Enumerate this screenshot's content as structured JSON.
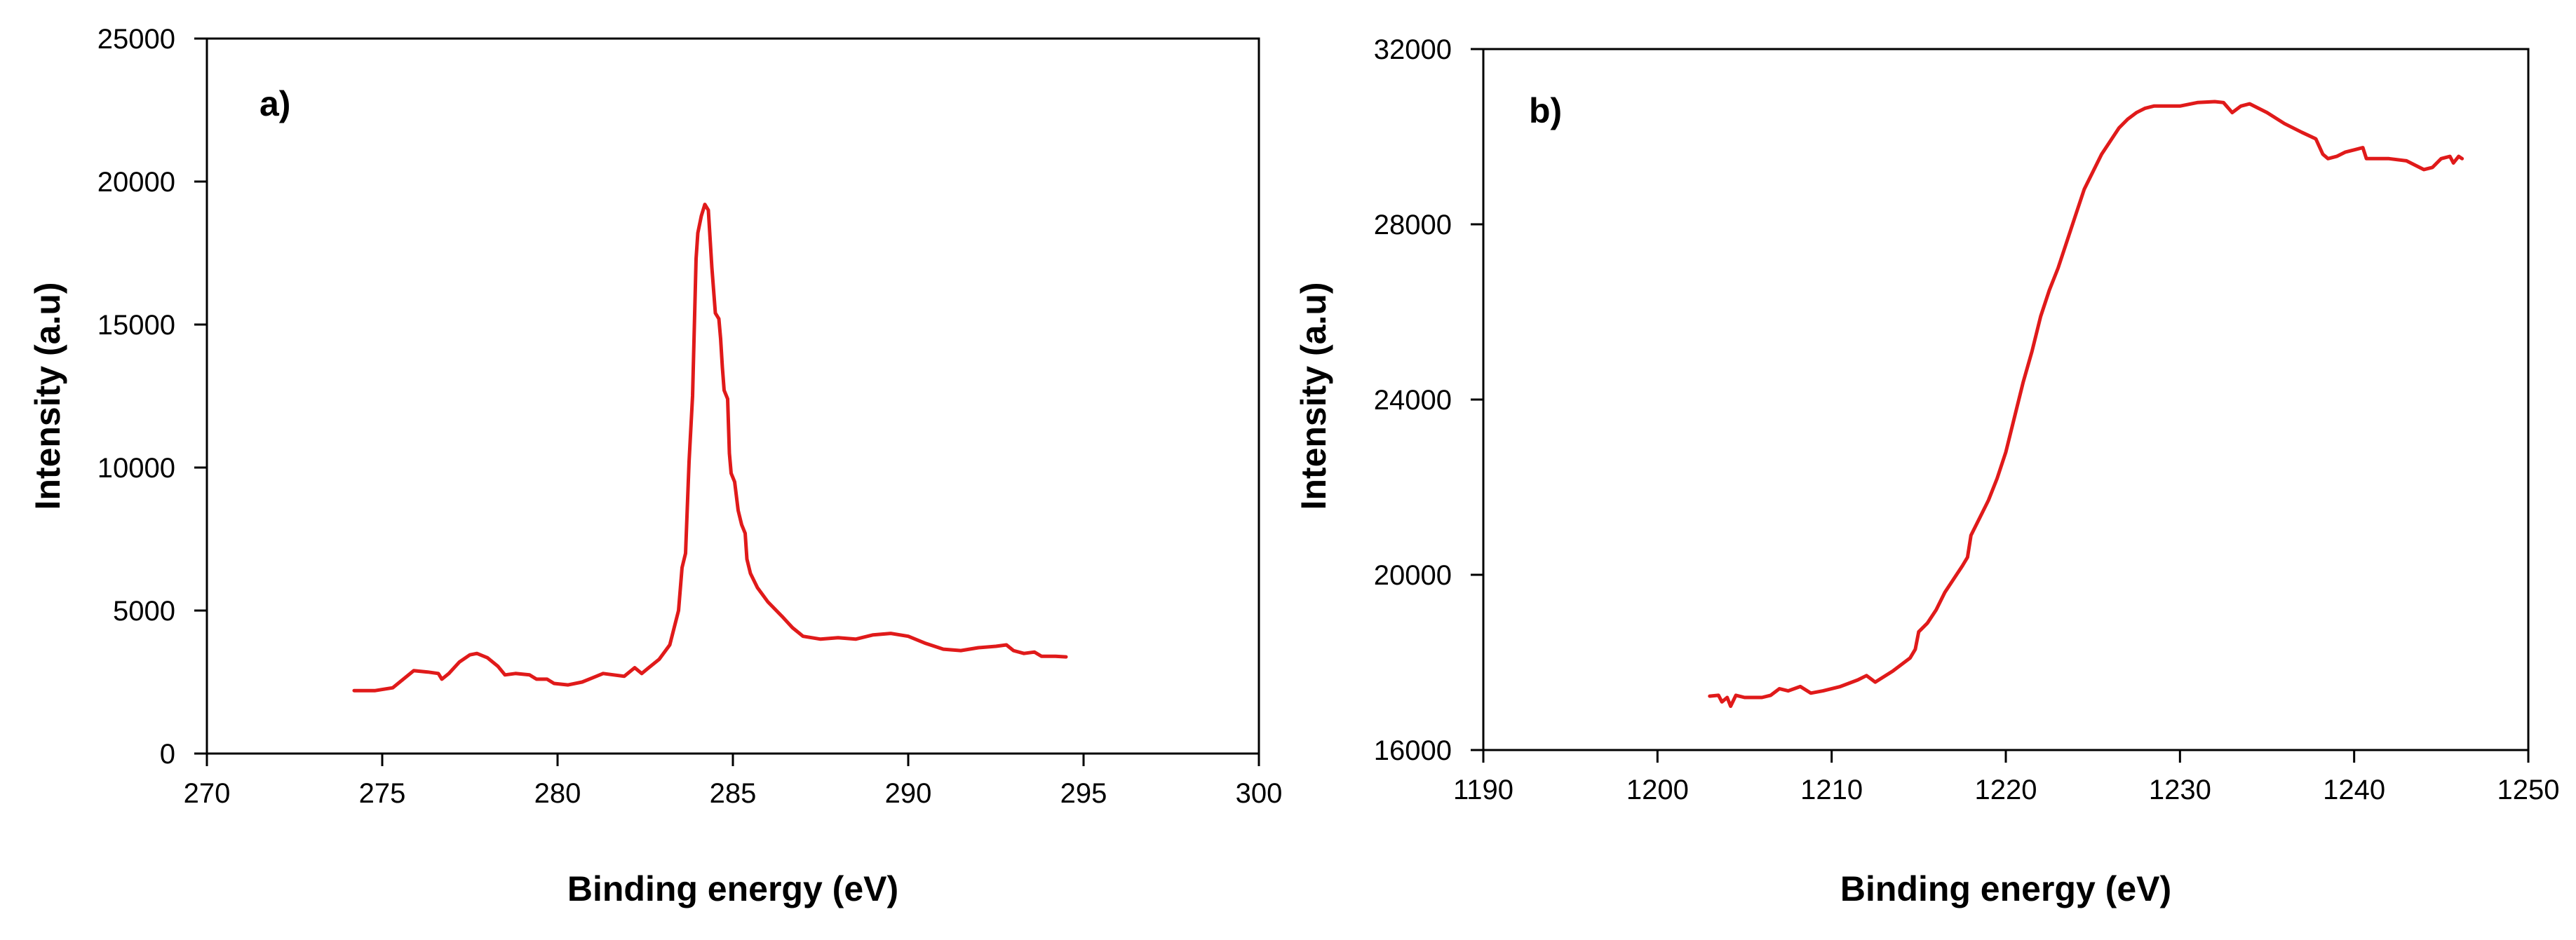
{
  "chart_data": [
    {
      "type": "line",
      "panel_label": "a)",
      "xlabel": "Binding energy (eV)",
      "ylabel": "Intensity (a.u)",
      "xlim": [
        270,
        300
      ],
      "ylim": [
        0,
        25000
      ],
      "x_ticks": [
        270,
        275,
        280,
        285,
        290,
        295,
        300
      ],
      "y_ticks": [
        0,
        5000,
        10000,
        15000,
        20000,
        25000
      ],
      "grid": false,
      "series": [
        {
          "name": "a",
          "color": "#e01a1a",
          "points": [
            [
              274.2,
              2200
            ],
            [
              274.8,
              2200
            ],
            [
              275.3,
              2300
            ],
            [
              275.6,
              2600
            ],
            [
              275.9,
              2900
            ],
            [
              276.3,
              2850
            ],
            [
              276.6,
              2800
            ],
            [
              276.7,
              2600
            ],
            [
              276.9,
              2800
            ],
            [
              277.2,
              3200
            ],
            [
              277.5,
              3450
            ],
            [
              277.7,
              3500
            ],
            [
              278.0,
              3350
            ],
            [
              278.3,
              3050
            ],
            [
              278.5,
              2750
            ],
            [
              278.8,
              2800
            ],
            [
              279.2,
              2750
            ],
            [
              279.4,
              2600
            ],
            [
              279.7,
              2600
            ],
            [
              279.9,
              2450
            ],
            [
              280.3,
              2400
            ],
            [
              280.7,
              2500
            ],
            [
              281.0,
              2650
            ],
            [
              281.3,
              2800
            ],
            [
              281.6,
              2750
            ],
            [
              281.9,
              2700
            ],
            [
              282.2,
              3000
            ],
            [
              282.4,
              2800
            ],
            [
              282.6,
              3000
            ],
            [
              282.9,
              3300
            ],
            [
              283.2,
              3800
            ],
            [
              283.45,
              5000
            ],
            [
              283.55,
              6500
            ],
            [
              283.65,
              7000
            ],
            [
              283.75,
              10200
            ],
            [
              283.85,
              12500
            ],
            [
              283.95,
              17300
            ],
            [
              284.0,
              18200
            ],
            [
              284.1,
              18800
            ],
            [
              284.2,
              19200
            ],
            [
              284.3,
              19000
            ],
            [
              284.4,
              17000
            ],
            [
              284.5,
              15400
            ],
            [
              284.6,
              15200
            ],
            [
              284.65,
              14500
            ],
            [
              284.7,
              13500
            ],
            [
              284.75,
              12700
            ],
            [
              284.85,
              12400
            ],
            [
              284.9,
              10500
            ],
            [
              284.95,
              9800
            ],
            [
              285.05,
              9500
            ],
            [
              285.15,
              8500
            ],
            [
              285.25,
              8000
            ],
            [
              285.35,
              7700
            ],
            [
              285.4,
              6800
            ],
            [
              285.5,
              6300
            ],
            [
              285.7,
              5800
            ],
            [
              286.0,
              5300
            ],
            [
              286.4,
              4800
            ],
            [
              286.7,
              4400
            ],
            [
              287.0,
              4100
            ],
            [
              287.5,
              4000
            ],
            [
              288.0,
              4050
            ],
            [
              288.5,
              4000
            ],
            [
              289.0,
              4150
            ],
            [
              289.5,
              4200
            ],
            [
              290.0,
              4100
            ],
            [
              290.5,
              3850
            ],
            [
              291.0,
              3650
            ],
            [
              291.5,
              3600
            ],
            [
              292.0,
              3700
            ],
            [
              292.5,
              3750
            ],
            [
              292.8,
              3800
            ],
            [
              293.0,
              3600
            ],
            [
              293.3,
              3500
            ],
            [
              293.6,
              3550
            ],
            [
              293.8,
              3400
            ],
            [
              294.2,
              3400
            ],
            [
              294.5,
              3380
            ]
          ]
        }
      ]
    },
    {
      "type": "line",
      "panel_label": "b)",
      "xlabel": "Binding energy (eV)",
      "ylabel": "Intensity (a.u)",
      "xlim": [
        1190,
        1250
      ],
      "ylim": [
        16000,
        32000
      ],
      "x_ticks": [
        1190,
        1200,
        1210,
        1220,
        1230,
        1240,
        1250
      ],
      "y_ticks": [
        16000,
        20000,
        24000,
        28000,
        32000
      ],
      "grid": false,
      "series": [
        {
          "name": "b",
          "color": "#e01a1a",
          "points": [
            [
              1203.0,
              17230
            ],
            [
              1203.5,
              17250
            ],
            [
              1203.7,
              17100
            ],
            [
              1204.0,
              17200
            ],
            [
              1204.2,
              17000
            ],
            [
              1204.5,
              17250
            ],
            [
              1205.0,
              17200
            ],
            [
              1206.0,
              17200
            ],
            [
              1206.5,
              17250
            ],
            [
              1207.0,
              17400
            ],
            [
              1207.5,
              17350
            ],
            [
              1208.2,
              17450
            ],
            [
              1208.8,
              17300
            ],
            [
              1209.5,
              17350
            ],
            [
              1210.5,
              17450
            ],
            [
              1211.5,
              17600
            ],
            [
              1212.0,
              17700
            ],
            [
              1212.5,
              17550
            ],
            [
              1213.5,
              17800
            ],
            [
              1214.5,
              18100
            ],
            [
              1214.8,
              18300
            ],
            [
              1215.0,
              18700
            ],
            [
              1215.5,
              18900
            ],
            [
              1216.0,
              19200
            ],
            [
              1216.5,
              19600
            ],
            [
              1217.0,
              19900
            ],
            [
              1217.5,
              20200
            ],
            [
              1217.8,
              20400
            ],
            [
              1218.0,
              20900
            ],
            [
              1218.5,
              21300
            ],
            [
              1219.0,
              21700
            ],
            [
              1219.5,
              22200
            ],
            [
              1220.0,
              22800
            ],
            [
              1220.5,
              23600
            ],
            [
              1221.0,
              24400
            ],
            [
              1221.5,
              25100
            ],
            [
              1222.0,
              25900
            ],
            [
              1222.5,
              26500
            ],
            [
              1223.0,
              27000
            ],
            [
              1223.5,
              27600
            ],
            [
              1224.0,
              28200
            ],
            [
              1224.5,
              28800
            ],
            [
              1225.0,
              29200
            ],
            [
              1225.5,
              29600
            ],
            [
              1226.0,
              29900
            ],
            [
              1226.5,
              30200
            ],
            [
              1227.0,
              30400
            ],
            [
              1227.5,
              30550
            ],
            [
              1228.0,
              30650
            ],
            [
              1228.5,
              30700
            ],
            [
              1229.0,
              30700
            ],
            [
              1230.0,
              30700
            ],
            [
              1231.0,
              30780
            ],
            [
              1232.0,
              30800
            ],
            [
              1232.5,
              30780
            ],
            [
              1233.0,
              30550
            ],
            [
              1233.5,
              30700
            ],
            [
              1234.0,
              30750
            ],
            [
              1234.5,
              30650
            ],
            [
              1235.0,
              30550
            ],
            [
              1236.0,
              30300
            ],
            [
              1237.0,
              30100
            ],
            [
              1237.8,
              29950
            ],
            [
              1238.2,
              29600
            ],
            [
              1238.5,
              29500
            ],
            [
              1239.0,
              29550
            ],
            [
              1239.5,
              29650
            ],
            [
              1240.0,
              29700
            ],
            [
              1240.5,
              29750
            ],
            [
              1240.7,
              29500
            ],
            [
              1241.0,
              29500
            ],
            [
              1242.0,
              29500
            ],
            [
              1243.0,
              29450
            ],
            [
              1243.5,
              29350
            ],
            [
              1244.0,
              29250
            ],
            [
              1244.5,
              29300
            ],
            [
              1245.0,
              29500
            ],
            [
              1245.5,
              29550
            ],
            [
              1245.7,
              29400
            ],
            [
              1246.0,
              29550
            ],
            [
              1246.2,
              29500
            ]
          ]
        }
      ]
    }
  ]
}
